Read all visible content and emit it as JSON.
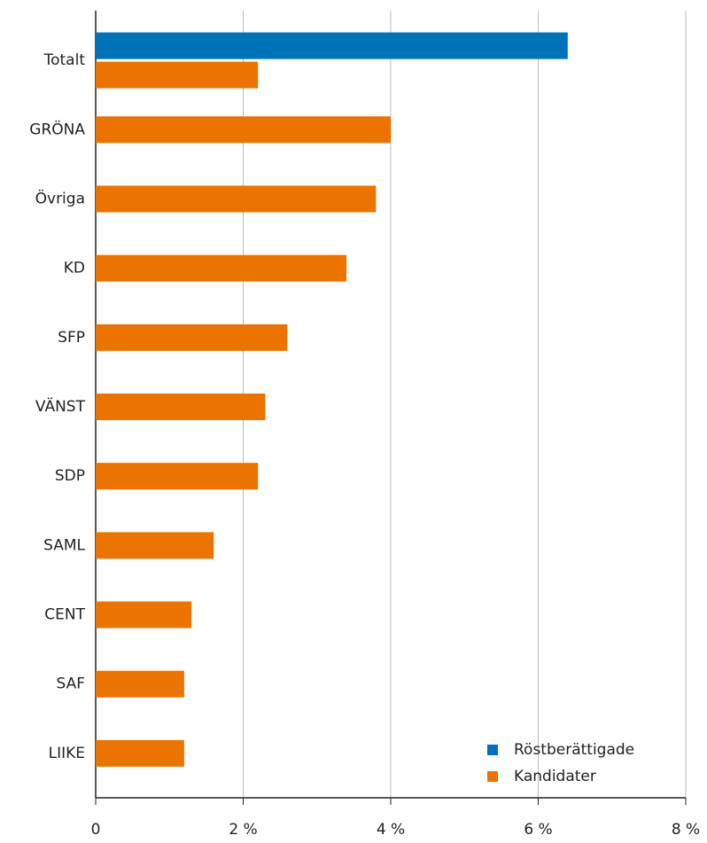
{
  "chart_data": {
    "type": "bar",
    "orientation": "horizontal",
    "categories": [
      "Totalt",
      "GRÖNA",
      "Övriga",
      "KD",
      "SFP",
      "VÄNST",
      "SDP",
      "SAML",
      "CENT",
      "SAF",
      "LIIKE"
    ],
    "series": [
      {
        "name": "Röstberättigade",
        "color": "#0072b7",
        "values": [
          6.4,
          null,
          null,
          null,
          null,
          null,
          null,
          null,
          null,
          null,
          null
        ]
      },
      {
        "name": "Kandidater",
        "color": "#eb7400",
        "values": [
          2.2,
          4.0,
          3.8,
          3.4,
          2.6,
          2.3,
          2.2,
          1.6,
          1.3,
          1.2,
          1.2
        ]
      }
    ],
    "xlim": [
      0,
      8
    ],
    "xticks": [
      0,
      {
        "value": 2,
        "label": "2 %"
      },
      {
        "value": 4,
        "label": "4 %"
      },
      {
        "value": 6,
        "label": "6 %"
      },
      {
        "value": 8,
        "label": "8 %"
      }
    ],
    "grid": true,
    "legend": "lower right"
  }
}
